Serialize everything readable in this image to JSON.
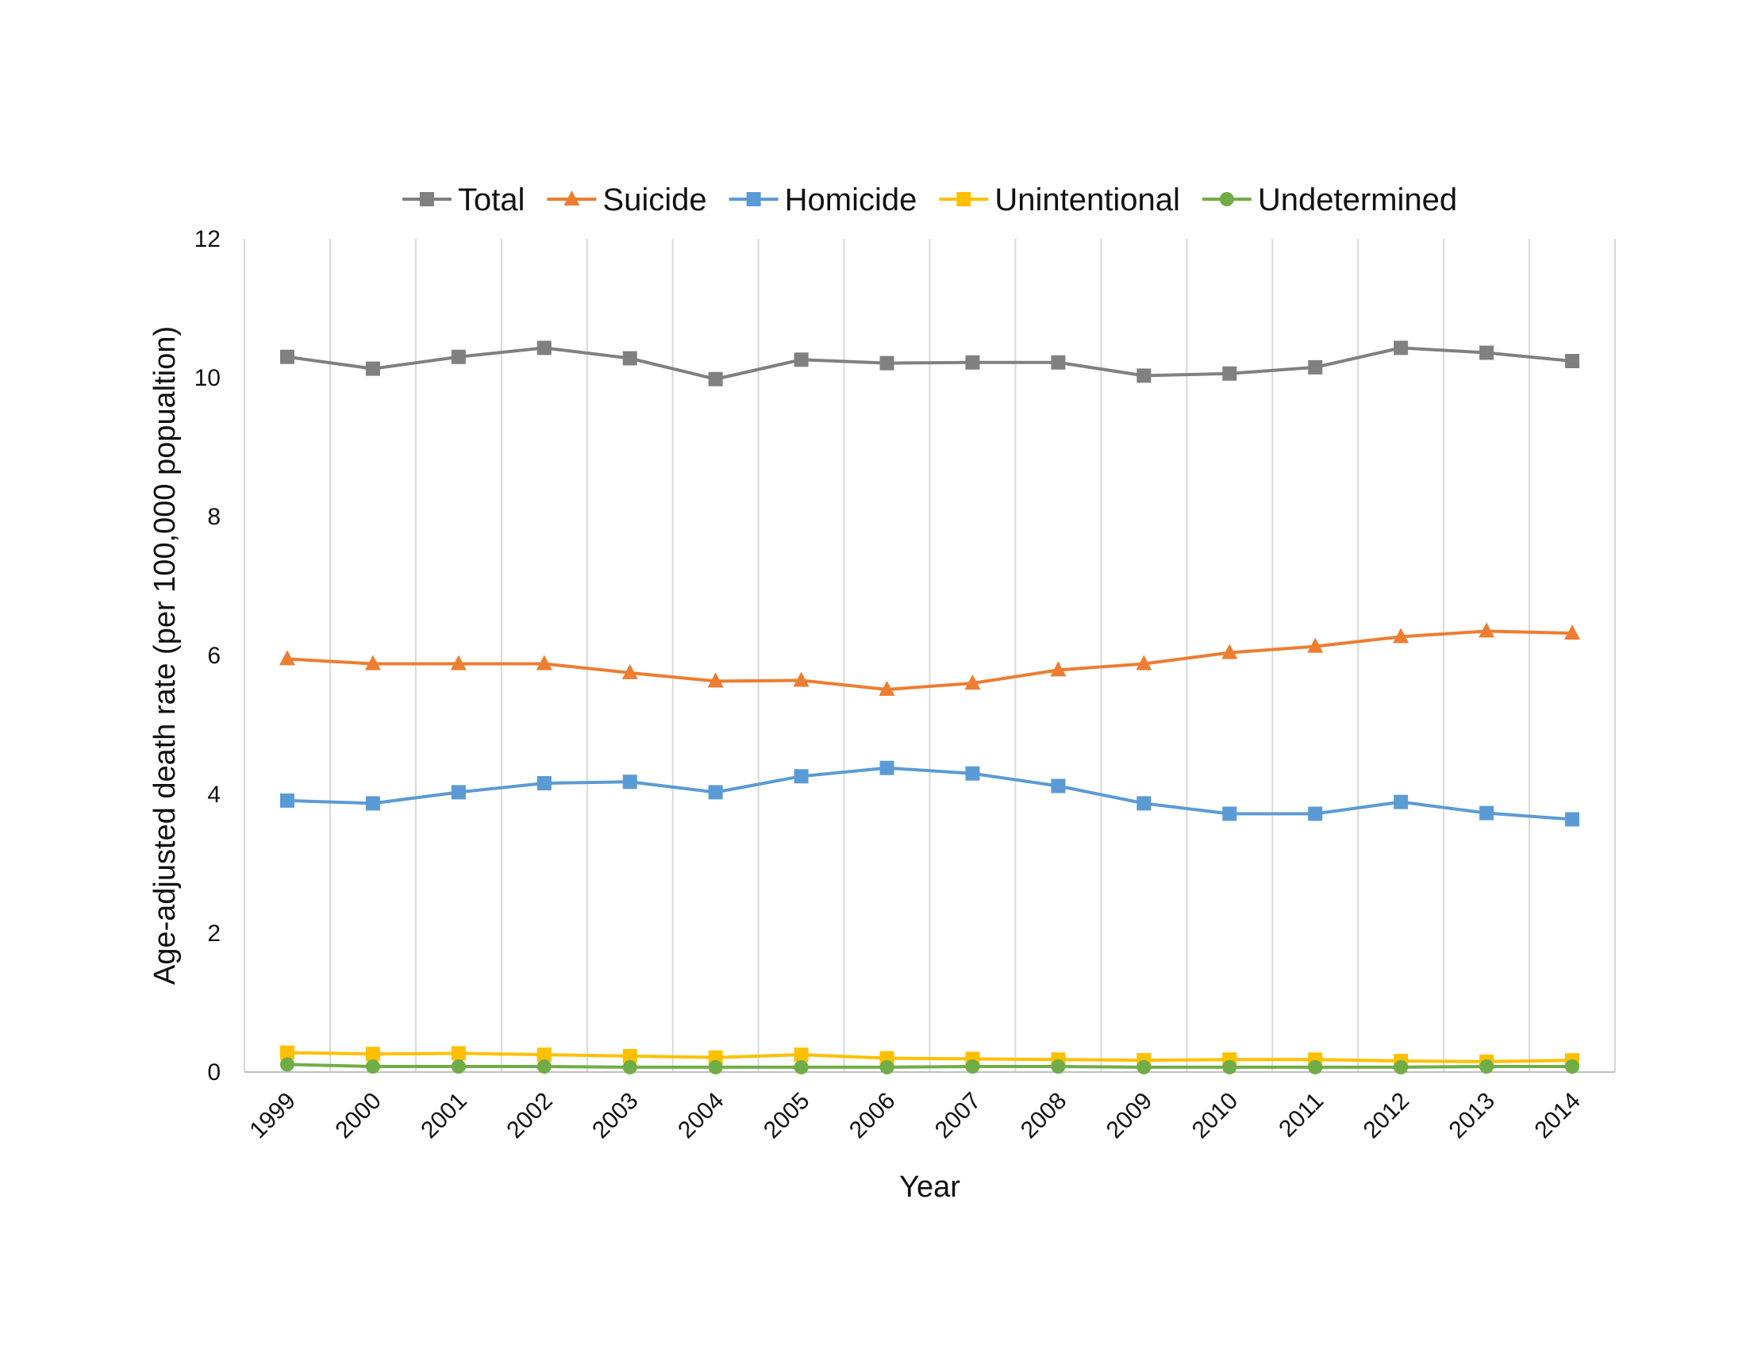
{
  "chart_data": {
    "type": "line",
    "title": "",
    "xlabel": "Year",
    "ylabel": "Age-adjusted death rate (per 100,000 popualtion)",
    "ylim": [
      0,
      12
    ],
    "yticks": [
      0,
      2,
      4,
      6,
      8,
      10,
      12
    ],
    "grid": "vertical",
    "legend_position": "top",
    "categories": [
      "1999",
      "2000",
      "2001",
      "2002",
      "2003",
      "2004",
      "2005",
      "2006",
      "2007",
      "2008",
      "2009",
      "2010",
      "2011",
      "2012",
      "2013",
      "2014"
    ],
    "series": [
      {
        "name": "Total",
        "color": "#808080",
        "marker": "square",
        "values": [
          10.3,
          10.13,
          10.3,
          10.43,
          10.28,
          9.98,
          10.26,
          10.21,
          10.22,
          10.22,
          10.03,
          10.06,
          10.15,
          10.43,
          10.36,
          10.24
        ]
      },
      {
        "name": "Suicide",
        "color": "#ED7D31",
        "marker": "triangle",
        "values": [
          5.95,
          5.88,
          5.88,
          5.88,
          5.75,
          5.63,
          5.64,
          5.51,
          5.6,
          5.79,
          5.88,
          6.04,
          6.13,
          6.27,
          6.35,
          6.32
        ]
      },
      {
        "name": "Homicide",
        "color": "#5B9BD5",
        "marker": "square",
        "values": [
          3.91,
          3.87,
          4.03,
          4.16,
          4.18,
          4.03,
          4.26,
          4.38,
          4.3,
          4.12,
          3.87,
          3.72,
          3.72,
          3.89,
          3.73,
          3.64
        ]
      },
      {
        "name": "Unintentional",
        "color": "#FFC000",
        "marker": "square",
        "values": [
          0.28,
          0.26,
          0.27,
          0.25,
          0.23,
          0.21,
          0.25,
          0.2,
          0.19,
          0.18,
          0.17,
          0.18,
          0.18,
          0.16,
          0.15,
          0.17
        ]
      },
      {
        "name": "Undetermined",
        "color": "#70AD47",
        "marker": "circle",
        "values": [
          0.11,
          0.08,
          0.08,
          0.08,
          0.07,
          0.07,
          0.07,
          0.07,
          0.08,
          0.08,
          0.07,
          0.07,
          0.07,
          0.07,
          0.08,
          0.08
        ]
      }
    ]
  }
}
